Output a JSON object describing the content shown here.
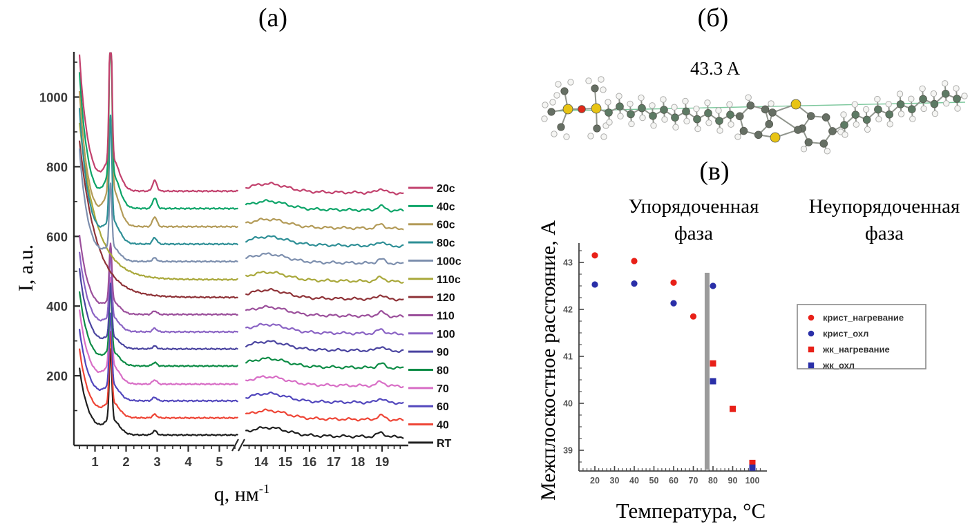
{
  "figure": {
    "panel_a_title": "(a)",
    "panel_b_title": "(б)",
    "panel_v_title": "(в)"
  },
  "molecule": {
    "measure_label": "43.3 A",
    "colors": {
      "carbon": "#666f64",
      "carbon_chain": "#5d7a64",
      "hydrogen": "#f5f5f3",
      "hydrogen_stroke": "#aeaeac",
      "sulfur": "#e8c414",
      "silicon": "#e8c414",
      "oxygen": "#e02818",
      "bond": "#90958d",
      "measure_line": "#7cc79c"
    }
  },
  "chart_data": [
    {
      "type": "line",
      "panel": "a",
      "xlabel_base": "q, нм",
      "xlabel_sup": "-1",
      "ylabel": "I, a.u.",
      "x_axis": {
        "break": true,
        "segment1": {
          "min": 0.5,
          "max": 5.6,
          "major_ticks": [
            1,
            2,
            3,
            4,
            5
          ],
          "minor_step": 0.25
        },
        "segment2": {
          "min": 13.35,
          "max": 19.9,
          "major_ticks": [
            14,
            15,
            16,
            17,
            18,
            19
          ],
          "minor_step": 0.25
        }
      },
      "y_axis": {
        "min": 0,
        "max": 1130,
        "major_ticks": [
          200,
          400,
          600,
          800,
          1000
        ],
        "minor_step": 100
      },
      "peak_model": {
        "upturn_q": 0.42,
        "main_peak_q": 1.5,
        "main_peak_w": 0.06,
        "tail_w": 0.32,
        "bump_q": 2.92,
        "bump_w": 0.1,
        "hump_q": 14.3,
        "hump_w": 1.05,
        "hump_amp": 22,
        "wide_peak_q": 18.95,
        "wide_peak_w": 0.22,
        "wide_peak_amp": 12,
        "clip": 1126
      },
      "series": [
        {
          "label": "20c",
          "color": "#c2416d",
          "base": 730,
          "peak": 430,
          "bump": 30,
          "upturn": 520,
          "upturn_w": 0.28,
          "seed": 1
        },
        {
          "label": "40c",
          "color": "#0ca468",
          "base": 680,
          "peak": 470,
          "bump": 30,
          "upturn": 520,
          "upturn_w": 0.28,
          "seed": 2
        },
        {
          "label": "60c",
          "color": "#b39b58",
          "base": 628,
          "peak": 520,
          "bump": 28,
          "upturn": 520,
          "upturn_w": 0.28,
          "seed": 3
        },
        {
          "label": "80c",
          "color": "#2e8f96",
          "base": 578,
          "peak": 300,
          "bump": 18,
          "upturn": 520,
          "upturn_w": 0.28,
          "seed": 4
        },
        {
          "label": "100c",
          "color": "#7d8fae",
          "base": 528,
          "peak": 180,
          "bump": 10,
          "upturn": 430,
          "upturn_w": 0.28,
          "seed": 5
        },
        {
          "label": "110c",
          "color": "#a9a83b",
          "base": 476,
          "peak": 0,
          "bump": 0,
          "upturn": 520,
          "upturn_w": 0.55,
          "seed": 6
        },
        {
          "label": "120",
          "color": "#8f3338",
          "base": 425,
          "peak": 0,
          "bump": 0,
          "upturn": 520,
          "upturn_w": 0.55,
          "seed": 7
        },
        {
          "label": "110",
          "color": "#9b4f9b",
          "base": 376,
          "peak": 165,
          "bump": 10,
          "upturn": 300,
          "upturn_w": 0.3,
          "seed": 8
        },
        {
          "label": "100",
          "color": "#8a63c4",
          "base": 326,
          "peak": 185,
          "bump": 10,
          "upturn": 300,
          "upturn_w": 0.3,
          "seed": 9
        },
        {
          "label": "90",
          "color": "#4a44a0",
          "base": 277,
          "peak": 150,
          "bump": 8,
          "upturn": 300,
          "upturn_w": 0.3,
          "seed": 10
        },
        {
          "label": "80",
          "color": "#0d8c46",
          "base": 228,
          "peak": 185,
          "bump": 10,
          "upturn": 280,
          "upturn_w": 0.3,
          "seed": 11
        },
        {
          "label": "70",
          "color": "#d86ec6",
          "base": 176,
          "peak": 250,
          "bump": 12,
          "upturn": 280,
          "upturn_w": 0.3,
          "seed": 12
        },
        {
          "label": "60",
          "color": "#5247bd",
          "base": 128,
          "peak": 205,
          "bump": 10,
          "upturn": 270,
          "upturn_w": 0.3,
          "seed": 13
        },
        {
          "label": "40",
          "color": "#ee4435",
          "base": 79,
          "peak": 200,
          "bump": 10,
          "upturn": 260,
          "upturn_w": 0.3,
          "seed": 14
        },
        {
          "label": "RT",
          "color": "#1f1f1f",
          "base": 30,
          "peak": 200,
          "bump": 12,
          "upturn": 250,
          "upturn_w": 0.3,
          "seed": 15
        }
      ]
    },
    {
      "type": "scatter",
      "panel": "в",
      "xlabel": "Температура, °C",
      "ylabel": "Межплоскостное расстояние, A",
      "x_axis": {
        "min": 13,
        "max": 107,
        "major_ticks": [
          20,
          30,
          40,
          50,
          60,
          70,
          80,
          90,
          100
        ],
        "minor_step": 2
      },
      "y_axis": {
        "min": 38.5,
        "max": 43.4,
        "major_ticks": [
          39,
          40,
          41,
          42,
          43
        ],
        "minor_step": 0.25
      },
      "annotations": {
        "ordered": "Упорядоченная\nфаза",
        "disordered": "Неупорядоченная\nфаза"
      },
      "phase_boundary": {
        "x": 77,
        "top": 42.78,
        "color": "#9b9b9b"
      },
      "series": [
        {
          "label": "крист_нагревание",
          "marker": "circle",
          "color": "#e82018",
          "points": [
            [
              20,
              43.15
            ],
            [
              40,
              43.03
            ],
            [
              60,
              42.57
            ],
            [
              70,
              41.85
            ]
          ]
        },
        {
          "label": "крист_охл",
          "marker": "circle",
          "color": "#2a2fa8",
          "points": [
            [
              20,
              42.53
            ],
            [
              40,
              42.55
            ],
            [
              60,
              42.13
            ],
            [
              80,
              42.5
            ]
          ]
        },
        {
          "label": "жк_нагревание",
          "marker": "square",
          "color": "#e82018",
          "points": [
            [
              80,
              40.85
            ],
            [
              90,
              39.88
            ],
            [
              100,
              38.73
            ]
          ]
        },
        {
          "label": "жк_охл",
          "marker": "square",
          "color": "#2a2fa8",
          "points": [
            [
              80,
              40.47
            ],
            [
              100,
              38.63
            ]
          ]
        }
      ]
    }
  ]
}
